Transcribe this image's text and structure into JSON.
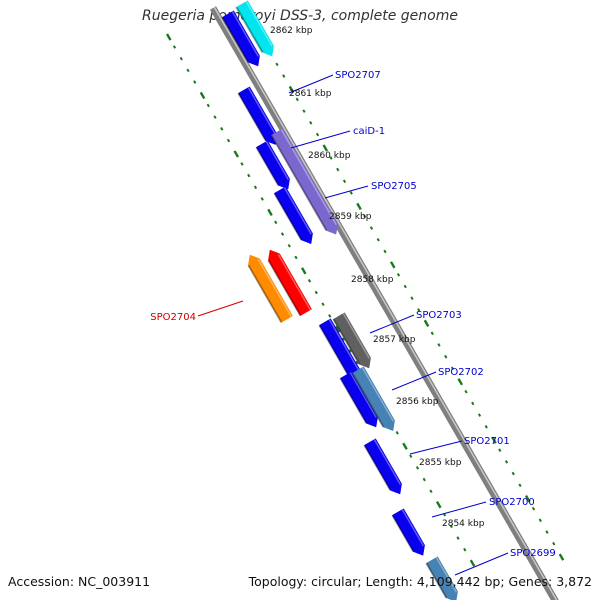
{
  "title": "Ruegeria pomeroyi DSS-3, complete genome",
  "footer": {
    "accession": "Accession: NC_003911",
    "summary": "Topology: circular; Length: 4,109,442 bp; Genes: 3,872"
  },
  "ruler": [
    {
      "label": "2862 kbp",
      "kbp": 2862
    },
    {
      "label": "2861 kbp",
      "kbp": 2861
    },
    {
      "label": "2860 kbp",
      "kbp": 2860
    },
    {
      "label": "2859 kbp",
      "kbp": 2859
    },
    {
      "label": "2858 kbp",
      "kbp": 2858
    },
    {
      "label": "2857 kbp",
      "kbp": 2857
    },
    {
      "label": "2856 kbp",
      "kbp": 2856
    },
    {
      "label": "2855 kbp",
      "kbp": 2855
    },
    {
      "label": "2854 kbp",
      "kbp": 2854
    }
  ],
  "features": [
    {
      "name": "SPO2707",
      "color": "#0a00f0",
      "label_color": "#0000cc",
      "lane": 1,
      "strand": "minus"
    },
    {
      "name": "",
      "color": "#00e5ee",
      "lane": 2,
      "strand": "minus"
    },
    {
      "name": "caiD-1",
      "color": "#7b68cf",
      "label_color": "#0000cc",
      "lane": 2,
      "strand": "minus"
    },
    {
      "name": "SPO2705",
      "color": "#0a00f0",
      "label_color": "#0000cc",
      "lane": 1,
      "strand": "minus"
    },
    {
      "name": "SPO2704",
      "color": "#ff8c00",
      "label_color": "#cc0000",
      "lane": -2,
      "strand": "plus"
    },
    {
      "name": "",
      "color": "#ff0000",
      "lane": -1,
      "strand": "plus"
    },
    {
      "name": "SPO2703",
      "color": "#606060",
      "label_color": "#0000cc",
      "lane": 2,
      "strand": "minus"
    },
    {
      "name": "SPO2702",
      "color": "#4682b4",
      "label_color": "#0000cc",
      "lane": 2,
      "strand": "minus"
    },
    {
      "name": "SPO2701",
      "color": "#0a00f0",
      "label_color": "#0000cc",
      "lane": 1,
      "strand": "minus"
    },
    {
      "name": "SPO2700",
      "color": "#0a00f0",
      "label_color": "#0000cc",
      "lane": 1,
      "strand": "minus"
    },
    {
      "name": "SPO2699",
      "color": "#4682b4",
      "label_color": "#0000cc",
      "lane": 2,
      "strand": "minus"
    }
  ],
  "colors": {
    "backbone": "#7f7f7f",
    "ruler": "#1a7a1a",
    "blue_gene": "#0a00f0"
  }
}
